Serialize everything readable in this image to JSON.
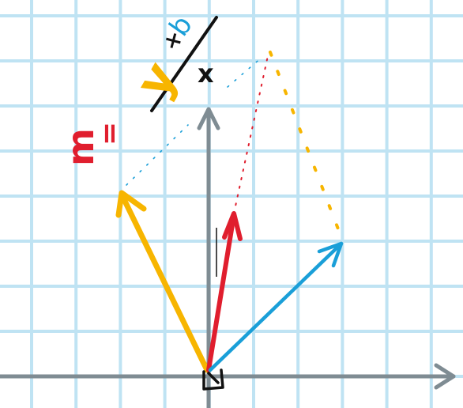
{
  "canvas": {
    "background": "#ffffff",
    "grid_color": "#bfe3f3"
  },
  "colors": {
    "axis": "#7f8c93",
    "yellow": "#f7b500",
    "red": "#e01e2e",
    "blue": "#1a9fd8",
    "black": "#111111"
  },
  "handwriting": {
    "m": "m",
    "equals": "=",
    "y": "y",
    "times": "×",
    "x": "x",
    "b": "b"
  },
  "icons": {
    "grid": "graph-paper-grid",
    "axes": "coordinate-axes",
    "right_angle": "right-angle-marker"
  }
}
